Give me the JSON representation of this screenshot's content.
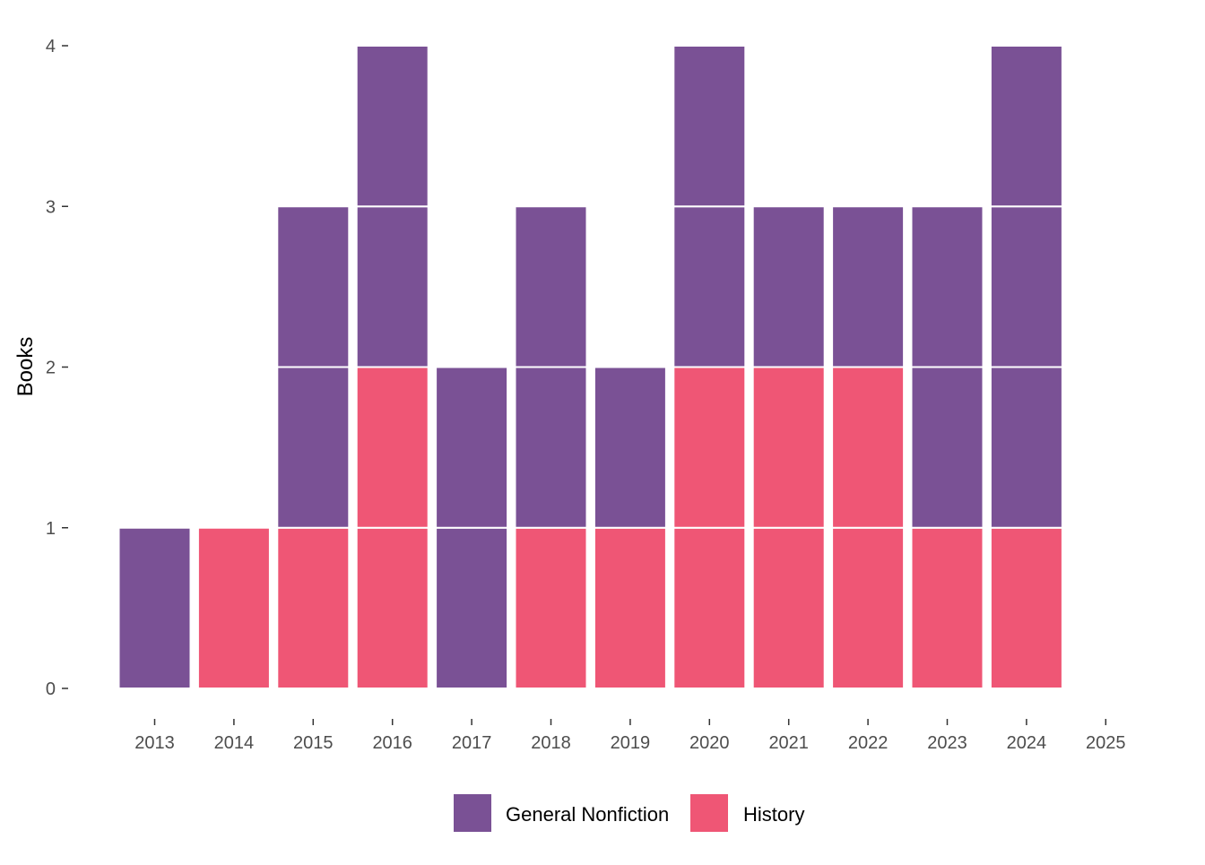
{
  "chart_data": {
    "type": "bar",
    "stacked": true,
    "unit_blocks": true,
    "xlabel": "",
    "ylabel": "Books",
    "ylim": [
      0,
      4
    ],
    "yticks": [
      "0",
      "1",
      "2",
      "3",
      "4"
    ],
    "x_ticks": [
      "2013",
      "2014",
      "2015",
      "2016",
      "2017",
      "2018",
      "2019",
      "2020",
      "2021",
      "2022",
      "2023",
      "2024",
      "2025"
    ],
    "grid": false,
    "legend_position": "bottom",
    "series": [
      {
        "name": "General Nonfiction",
        "color": "#7a5195"
      },
      {
        "name": "History",
        "color": "#ef5675"
      }
    ],
    "bars": [
      {
        "year": "2013",
        "stack": [
          "General Nonfiction"
        ]
      },
      {
        "year": "2014",
        "stack": [
          "History"
        ]
      },
      {
        "year": "2015",
        "stack": [
          "History",
          "General Nonfiction",
          "General Nonfiction"
        ]
      },
      {
        "year": "2016",
        "stack": [
          "History",
          "History",
          "General Nonfiction",
          "General Nonfiction"
        ]
      },
      {
        "year": "2017",
        "stack": [
          "General Nonfiction",
          "General Nonfiction"
        ]
      },
      {
        "year": "2018",
        "stack": [
          "History",
          "General Nonfiction",
          "General Nonfiction"
        ]
      },
      {
        "year": "2019",
        "stack": [
          "History",
          "General Nonfiction"
        ]
      },
      {
        "year": "2020",
        "stack": [
          "History",
          "History",
          "General Nonfiction",
          "General Nonfiction"
        ]
      },
      {
        "year": "2021",
        "stack": [
          "History",
          "History",
          "General Nonfiction"
        ]
      },
      {
        "year": "2022",
        "stack": [
          "History",
          "History",
          "General Nonfiction"
        ]
      },
      {
        "year": "2023",
        "stack": [
          "History",
          "General Nonfiction",
          "General Nonfiction"
        ]
      },
      {
        "year": "2024",
        "stack": [
          "History",
          "General Nonfiction",
          "General Nonfiction",
          "General Nonfiction"
        ]
      },
      {
        "year": "2025",
        "stack": []
      }
    ]
  }
}
